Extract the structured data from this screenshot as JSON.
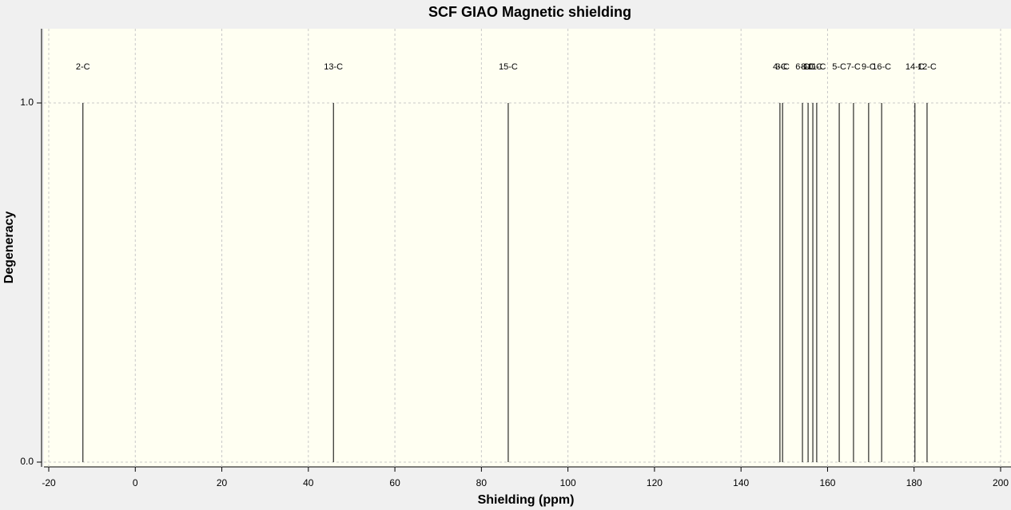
{
  "chart_data": {
    "type": "stem",
    "title": "SCF GIAO Magnetic shielding",
    "x_label": "Shielding (ppm)",
    "y_label": "Degeneracy",
    "x": [
      -12.1,
      45.8,
      86.2,
      149.0,
      149.6,
      154.2,
      155.5,
      156.6,
      157.5,
      162.7,
      166.0,
      169.5,
      172.5,
      180.2,
      183.0
    ],
    "values": [
      1,
      1,
      1,
      1,
      1,
      1,
      1,
      1,
      1,
      1,
      1,
      1,
      1,
      1,
      1
    ],
    "peak_labels": [
      "2-C",
      "13-C",
      "15-C",
      "4-C",
      "3-C",
      "6-C",
      "8-C",
      "10-C",
      "11-C",
      "5-C",
      "7-C",
      "9-C",
      "16-C",
      "14-C",
      "12-C"
    ],
    "color": "#000000",
    "xlim": [
      -20,
      200
    ],
    "xticks": [
      -20,
      0,
      20,
      40,
      60,
      80,
      100,
      120,
      140,
      160,
      180,
      200
    ],
    "ylim": [
      0,
      1.2
    ],
    "yticks": [
      {
        "value": 0,
        "label": "0.0"
      },
      {
        "value": 1,
        "label": "1.0"
      }
    ],
    "grid": true
  }
}
